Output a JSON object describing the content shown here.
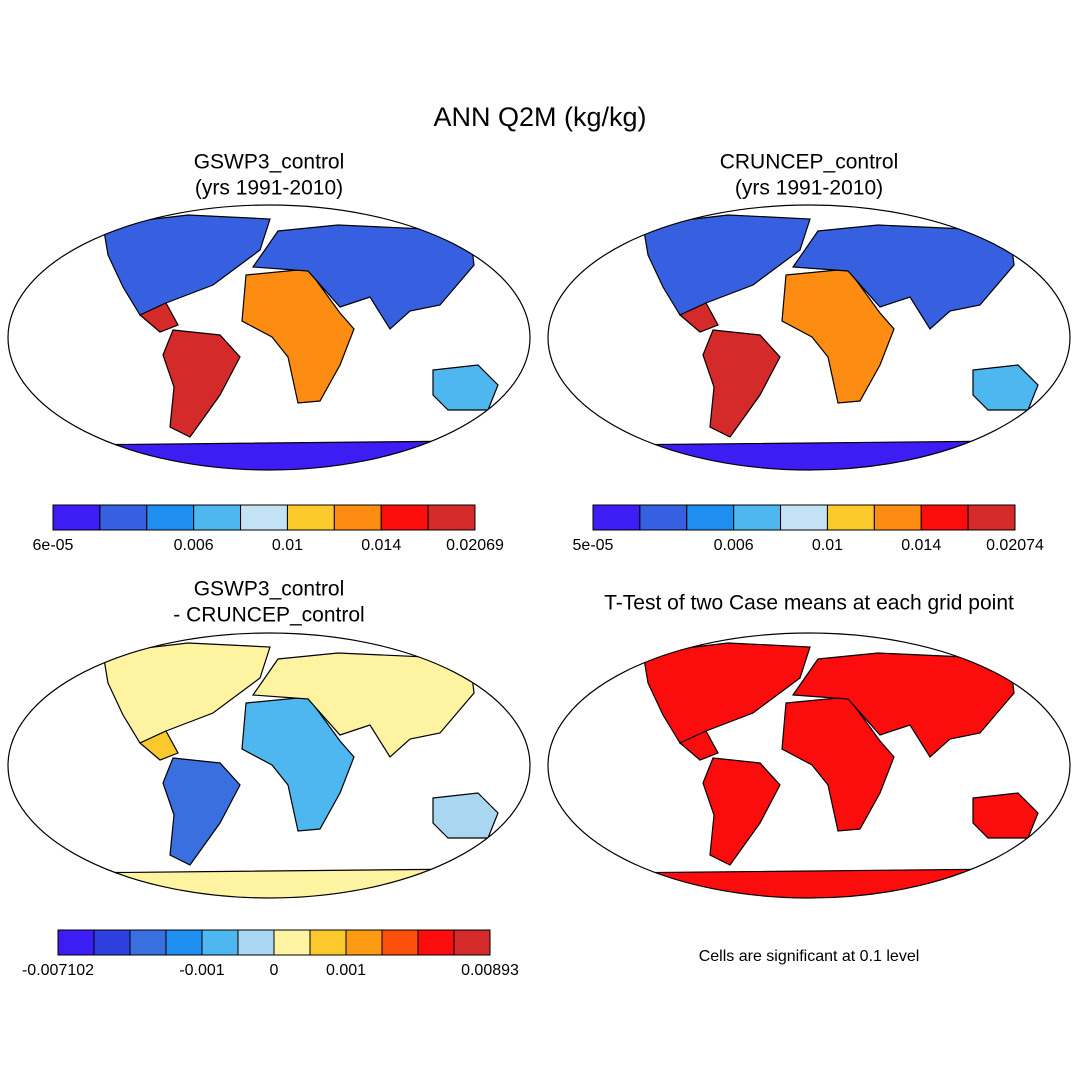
{
  "title": "ANN Q2M (kg/kg)",
  "panels": [
    {
      "title": [
        "GSWP3_control",
        "(yrs 1991-2010)"
      ],
      "colorbar": {
        "colors": [
          "#3c1ef5",
          "#3660e0",
          "#1f8ef1",
          "#4eb7ef",
          "#c3e3f5",
          "#fcc92c",
          "#fd8c12",
          "#fb0d0d",
          "#d42a2a"
        ],
        "labels": [
          "6e-05",
          null,
          null,
          "0.006",
          null,
          "0.01",
          null,
          "0.014",
          null,
          "0.02069"
        ]
      }
    },
    {
      "title": [
        "CRUNCEP_control",
        "(yrs 1991-2010)"
      ],
      "colorbar": {
        "colors": [
          "#3c1ef5",
          "#3660e0",
          "#1f8ef1",
          "#4eb7ef",
          "#c3e3f5",
          "#fcc92c",
          "#fd8c12",
          "#fb0d0d",
          "#d42a2a"
        ],
        "labels": [
          "5e-05",
          null,
          null,
          "0.006",
          null,
          "0.01",
          null,
          "0.014",
          null,
          "0.02074"
        ]
      }
    },
    {
      "title": [
        "GSWP3_control",
        "- CRUNCEP_control"
      ],
      "colorbar": {
        "colors": [
          "#3c1ef5",
          "#2e3fe0",
          "#3a6fe0",
          "#1f8ef1",
          "#4eb7ef",
          "#a9d7f2",
          "#fdf3a0",
          "#fcc92c",
          "#fd9a14",
          "#fc4f0c",
          "#fb0d0d",
          "#d42a2a"
        ],
        "labels": [
          "-0.007102",
          null,
          null,
          null,
          "-0.001",
          null,
          "0",
          null,
          "0.001",
          null,
          null,
          null,
          "0.00893"
        ]
      }
    },
    {
      "title": [
        "T-Test of two Case means at each grid point"
      ],
      "note": "Cells are significant at 0.1 level"
    }
  ]
}
